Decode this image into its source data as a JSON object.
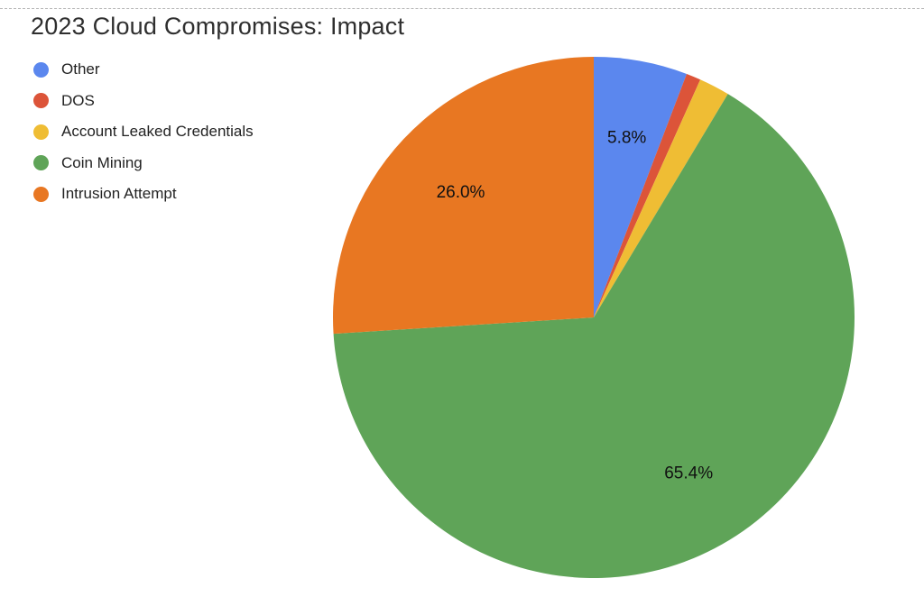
{
  "chart_data": {
    "type": "pie",
    "title": "2023 Cloud Compromises: Impact",
    "legend_position": "top-left",
    "slices": [
      {
        "name": "Other",
        "value": 5.8,
        "color": "#5b87ee",
        "label": "5.8%"
      },
      {
        "name": "DOS",
        "value": 0.9,
        "color": "#dc5439",
        "label": ""
      },
      {
        "name": "Account Leaked Credentials",
        "value": 1.9,
        "color": "#efbd34",
        "label": ""
      },
      {
        "name": "Coin Mining",
        "value": 65.4,
        "color": "#5fa458",
        "label": "65.4%"
      },
      {
        "name": "Intrusion Attempt",
        "value": 26.0,
        "color": "#e87722",
        "label": "26.0%"
      }
    ]
  }
}
